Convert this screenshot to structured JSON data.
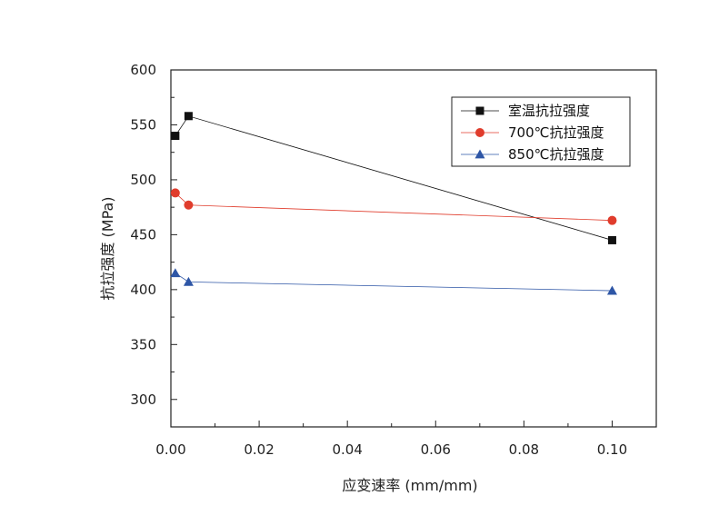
{
  "chart_data": {
    "type": "line",
    "xlabel": "应变速率 (mm/mm)",
    "ylabel": "抗拉强度 (MPa)",
    "xlim": [
      0.0,
      0.11
    ],
    "ylim": [
      275,
      600
    ],
    "x_ticks": [
      0.0,
      0.02,
      0.04,
      0.06,
      0.08,
      0.1
    ],
    "x_tick_labels": [
      "0.00",
      "0.02",
      "0.04",
      "0.06",
      "0.08",
      "0.10"
    ],
    "y_ticks": [
      300,
      350,
      400,
      450,
      500,
      550,
      600
    ],
    "y_tick_labels": [
      "300",
      "350",
      "400",
      "450",
      "500",
      "550",
      "600"
    ],
    "grid": false,
    "legend_position": "top-right",
    "series": [
      {
        "name": "室温抗拉强度",
        "color": "#111111",
        "marker": "square",
        "x": [
          0.001,
          0.004,
          0.1
        ],
        "y": [
          540,
          558,
          445
        ]
      },
      {
        "name": "700℃抗拉强度",
        "color": "#e03c2c",
        "marker": "circle",
        "x": [
          0.001,
          0.004,
          0.1
        ],
        "y": [
          488,
          477,
          463
        ]
      },
      {
        "name": "850℃抗拉强度",
        "color": "#2e56a6",
        "marker": "triangle",
        "x": [
          0.001,
          0.004,
          0.1
        ],
        "y": [
          415,
          407,
          399
        ]
      }
    ]
  }
}
